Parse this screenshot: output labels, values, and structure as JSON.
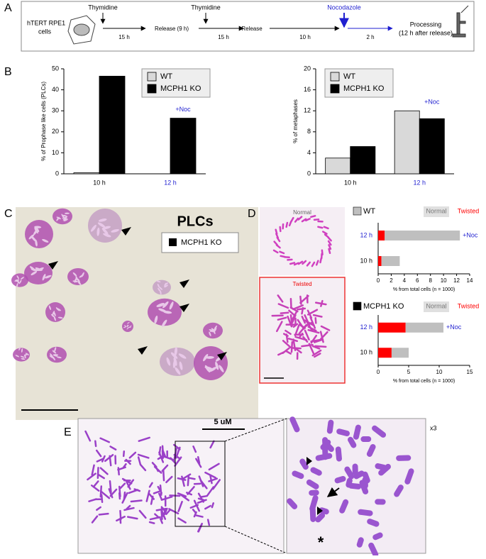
{
  "panel_a": {
    "label": "A",
    "cell_line": [
      "hTERT RPE1",
      "cells"
    ],
    "treatment_1": "Thymidine",
    "interval_1": "15 h",
    "release_1": "Release (9 h)",
    "treatment_2": "Thymidine",
    "interval_2": "15 h",
    "release_2": "Release",
    "interval_3": "10 h",
    "treatment_3": "Nocodazole",
    "interval_4": "2 h",
    "processing": [
      "Processing",
      "(12 h after release)"
    ]
  },
  "panel_b": {
    "label": "B"
  },
  "panel_c": {
    "label": "C",
    "title": "PLCs",
    "legend": "MCPH1 KO"
  },
  "panel_d": {
    "label": "D",
    "image_labels": [
      "Normal",
      "Twisted"
    ]
  },
  "panel_e": {
    "label": "E",
    "scale_bar": "5 uM",
    "magnification": "x3"
  },
  "chart_data": [
    {
      "type": "bar",
      "ylabel": "% of Prophase like cells (PLCs)",
      "categories": [
        "10 h",
        "12 h"
      ],
      "category_colors": [
        "#000000",
        "#1f1fd0"
      ],
      "series": [
        {
          "name": "WT",
          "color": "#d9d9d9",
          "values": [
            0.5,
            0
          ]
        },
        {
          "name": "MCPH1 KO",
          "color": "#000000",
          "values": [
            46.5,
            26.5
          ]
        }
      ],
      "ylim": [
        0,
        50
      ],
      "yticks": [
        0,
        10,
        20,
        30,
        40,
        50
      ],
      "annotation": "+Noc",
      "annotation_color": "#1f1fd0"
    },
    {
      "type": "bar",
      "ylabel": "% of metaphases",
      "categories": [
        "10 h",
        "12 h"
      ],
      "category_colors": [
        "#000000",
        "#1f1fd0"
      ],
      "series": [
        {
          "name": "WT",
          "color": "#d9d9d9",
          "values": [
            3,
            12
          ]
        },
        {
          "name": "MCPH1 KO",
          "color": "#000000",
          "values": [
            5.2,
            10.5
          ]
        }
      ],
      "ylim": [
        0,
        20
      ],
      "yticks": [
        0,
        4,
        8,
        12,
        16,
        20
      ],
      "annotation": "+Noc",
      "annotation_color": "#1f1fd0"
    },
    {
      "type": "hbar",
      "title": "WT",
      "title_color": "#bfbfbf",
      "categories": [
        "12 h",
        "10 h"
      ],
      "category_colors": [
        "#1f1fd0",
        "#000000"
      ],
      "series": [
        {
          "name": "Twisted",
          "color": "#ff0000",
          "values": [
            1,
            0.5
          ]
        },
        {
          "name": "Normal",
          "color": "#bfbfbf",
          "values": [
            11.5,
            2.8
          ]
        }
      ],
      "xlabel": "% from total cells (n = 1000)",
      "xlim": [
        0,
        14
      ],
      "xticks": [
        0,
        2,
        4,
        6,
        8,
        10,
        12,
        14
      ],
      "annotation": "+Noc",
      "annotation_color": "#1f1fd0"
    },
    {
      "type": "hbar",
      "title": "MCPH1 KO",
      "title_color": "#000000",
      "categories": [
        "12 h",
        "10 h"
      ],
      "category_colors": [
        "#1f1fd0",
        "#000000"
      ],
      "series": [
        {
          "name": "Twisted",
          "color": "#ff0000",
          "values": [
            4.5,
            2.2
          ]
        },
        {
          "name": "Normal",
          "color": "#bfbfbf",
          "values": [
            6.2,
            2.8
          ]
        }
      ],
      "xlabel": "% from total cells (n = 1000)",
      "xlim": [
        0,
        15
      ],
      "xticks": [
        0,
        5,
        10,
        15
      ],
      "annotation": "+Noc",
      "annotation_color": "#1f1fd0"
    }
  ]
}
